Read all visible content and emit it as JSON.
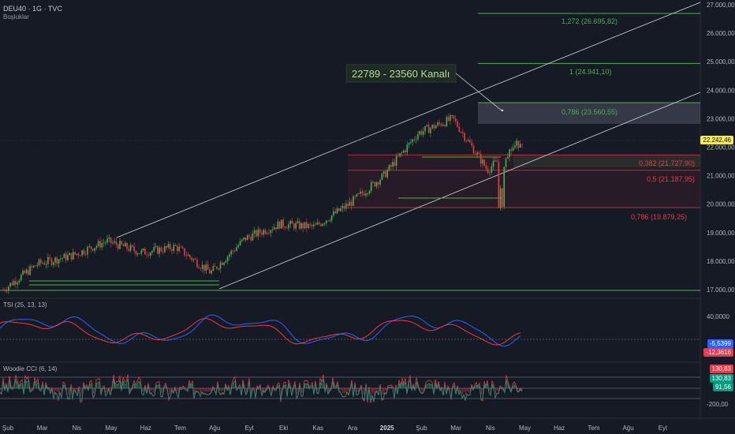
{
  "header": {
    "symbol_line": "DEU40 · 1G · TVC",
    "indicator": "Boşluklar"
  },
  "annotation": {
    "channel_label": "22789 - 23560 Kanalı"
  },
  "price_axis": {
    "ticks": [
      "27.000,00",
      "26.000,00",
      "25.000,00",
      "24.000,00",
      "23.000,00",
      "22.000,00",
      "21.000,00",
      "20.000,00",
      "19.000,00",
      "18.000,00",
      "17.000,00"
    ],
    "last_price": "22.242,46",
    "last_price_color": "#f5e663"
  },
  "fib_upper": [
    {
      "label": "1,272 (26.695,82)",
      "value": 26695.82,
      "color": "#4caf50"
    },
    {
      "label": "1 (24.941,10)",
      "value": 24941.1,
      "color": "#4caf50"
    },
    {
      "label": "0,786 (23.560,55)",
      "value": 23560.55,
      "color": "#4caf50"
    }
  ],
  "fib_lower": [
    {
      "label": "0,382 (21.727,90)",
      "value": 21727.9,
      "color": "#f23645"
    },
    {
      "label": "0,5 (21.187,95)",
      "value": 21187.95,
      "color": "#f23645"
    },
    {
      "label": "0,786 (19.879,25)",
      "value": 19879.25,
      "color": "#f23645"
    }
  ],
  "tsi": {
    "label": "TSI (25, 13, 13)",
    "tick": "40,0000",
    "value_blue": "-5,5399",
    "value_red": "-12,3616",
    "color_blue": "#2962ff",
    "color_red": "#f23645"
  },
  "cci": {
    "label": "Woodie CCI (6, 14)",
    "tick": "-200,00",
    "value_red": "130,83",
    "value_green": "130,83",
    "value_green2": "91,56",
    "color_red": "#f23645",
    "color_green": "#089981"
  },
  "time_axis": [
    "Şub",
    "Mar",
    "Nis",
    "May",
    "Haz",
    "Tem",
    "Ağu",
    "Eyl",
    "Eki",
    "Kas",
    "Ara",
    "2025",
    "Şub",
    "Mar",
    "Nis",
    "May",
    "Haz",
    "Tem",
    "Ağu",
    "Eyl"
  ],
  "chart_data": {
    "type": "candlestick",
    "title": "DEU40 · 1G · TVC",
    "ylim": [
      16800,
      27300
    ],
    "y_unit": "index points",
    "x_ticks": [
      "Şub",
      "Mar",
      "Nis",
      "May",
      "Haz",
      "Tem",
      "Ağu",
      "Eyl",
      "Eki",
      "Kas",
      "Ara",
      "2025",
      "Şub",
      "Mar",
      "Nis",
      "May",
      "Haz",
      "Tem",
      "Ağu",
      "Eyl"
    ],
    "close_trace": [
      {
        "month": "Şub 2024",
        "close": 17000
      },
      {
        "month": "Mar 2024",
        "close": 17900
      },
      {
        "month": "Nis 2024",
        "close": 18200
      },
      {
        "month": "May 2024",
        "close": 18700
      },
      {
        "month": "Haz 2024",
        "close": 18300
      },
      {
        "month": "Tem 2024",
        "close": 18500
      },
      {
        "month": "Ağu 2024",
        "close": 17600
      },
      {
        "month": "Eyl 2024",
        "close": 18800
      },
      {
        "month": "Eki 2024",
        "close": 19300
      },
      {
        "month": "Kas 2024",
        "close": 19200
      },
      {
        "month": "Ara 2024",
        "close": 20000
      },
      {
        "month": "Oca 2025",
        "close": 21000
      },
      {
        "month": "Şub 2025",
        "close": 22500
      },
      {
        "month": "Mar 2025",
        "close": 23000
      },
      {
        "month": "Nis 2025",
        "close": 21200
      },
      {
        "month": "Nis 2025 end",
        "close": 22242
      }
    ],
    "levels": {
      "fib_upper": [
        26695.82,
        24941.1,
        23560.55
      ],
      "fib_lower": [
        21727.9,
        21187.95,
        19879.25
      ],
      "base": 17000
    }
  }
}
